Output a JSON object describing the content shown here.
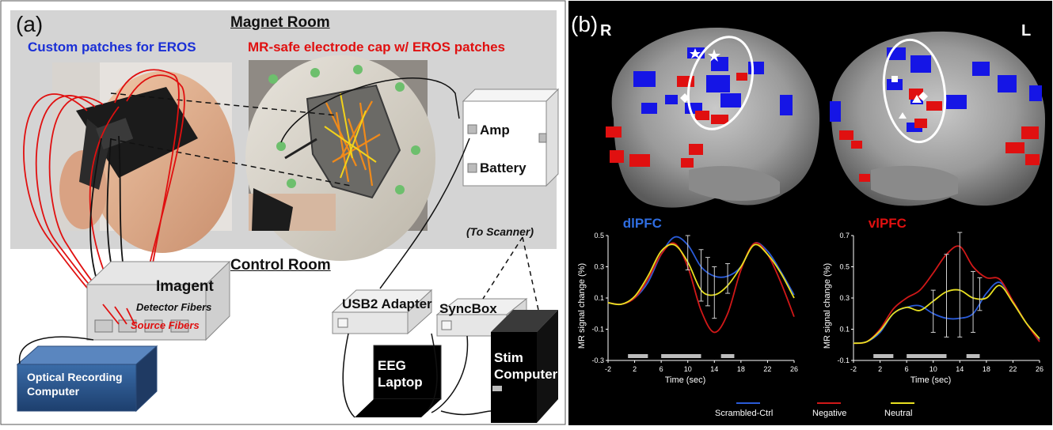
{
  "panel_a": {
    "label": "(a)",
    "magnet_room": "Magnet Room",
    "control_room": "Control Room",
    "custom_patches": "Custom patches for EROS",
    "mr_safe_cap": "MR-safe electrode cap w/ EROS patches",
    "amp": "Amp",
    "battery": "Battery",
    "to_scanner": "(To Scanner)",
    "imagent": "Imagent",
    "detector_fibers": "Detector Fibers",
    "source_fibers": "Source Fibers",
    "usb2_adapter": "USB2 Adapter",
    "syncbox": "SyncBox",
    "eeg_laptop_1": "EEG",
    "eeg_laptop_2": "Laptop",
    "stim_computer_1": "Stim",
    "stim_computer_2": "Computer",
    "optical_1": "Optical Recording",
    "optical_2": "Computer"
  },
  "panel_b": {
    "label": "(b)",
    "hemi_right": "R",
    "hemi_left": "L",
    "legend": [
      {
        "name": "Scrambled-Ctrl",
        "color": "#2a5bd8"
      },
      {
        "name": "Negative",
        "color": "#d01818"
      },
      {
        "name": "Neutral",
        "color": "#e8e020"
      }
    ]
  },
  "chart_data": [
    {
      "type": "line",
      "title": "dlPFC",
      "title_color": "#2f6de0",
      "xlabel": "Time (sec)",
      "ylabel": "MR signal change (%)",
      "xlim": [
        -2,
        26
      ],
      "ylim": [
        -0.3,
        0.5
      ],
      "xticks": [
        -2,
        2,
        6,
        10,
        14,
        18,
        22,
        26
      ],
      "yticks": [
        -0.3,
        -0.1,
        0.1,
        0.3,
        0.5
      ],
      "x": [
        -2,
        0,
        2,
        4,
        6,
        8,
        10,
        12,
        14,
        16,
        18,
        20,
        22,
        24,
        26
      ],
      "series": [
        {
          "name": "Scrambled-Ctrl",
          "color": "#2a5bd8",
          "values": [
            0.07,
            0.06,
            0.1,
            0.2,
            0.38,
            0.49,
            0.44,
            0.3,
            0.24,
            0.24,
            0.3,
            0.45,
            0.4,
            0.27,
            0.12
          ]
        },
        {
          "name": "Negative",
          "color": "#d01818",
          "values": [
            0.07,
            0.06,
            0.1,
            0.22,
            0.38,
            0.45,
            0.3,
            0.02,
            -0.12,
            0.0,
            0.28,
            0.45,
            0.38,
            0.2,
            -0.02
          ]
        },
        {
          "name": "Neutral",
          "color": "#e8e020",
          "values": [
            0.07,
            0.06,
            0.11,
            0.24,
            0.4,
            0.44,
            0.33,
            0.15,
            0.12,
            0.18,
            0.3,
            0.44,
            0.38,
            0.26,
            0.1
          ]
        }
      ],
      "error_bars": [
        {
          "x": 10,
          "low": 0.28,
          "high": 0.5
        },
        {
          "x": 12,
          "low": 0.08,
          "high": 0.41
        },
        {
          "x": 13,
          "low": 0.05,
          "high": 0.36
        },
        {
          "x": 14,
          "low": -0.03,
          "high": 0.3
        },
        {
          "x": 16,
          "low": 0.13,
          "high": 0.32
        }
      ],
      "stimulus_blocks": [
        [
          1,
          4
        ],
        [
          6,
          12
        ],
        [
          15,
          17
        ]
      ]
    },
    {
      "type": "line",
      "title": "vlPFC",
      "title_color": "#e01010",
      "xlabel": "Time (sec)",
      "ylabel": "MR signal change (%)",
      "xlim": [
        -2,
        26
      ],
      "ylim": [
        -0.1,
        0.7
      ],
      "xticks": [
        -2,
        2,
        6,
        10,
        14,
        18,
        22,
        26
      ],
      "yticks": [
        -0.1,
        0.1,
        0.3,
        0.5,
        0.7
      ],
      "x": [
        -2,
        0,
        2,
        4,
        6,
        8,
        10,
        12,
        14,
        16,
        18,
        20,
        22,
        24,
        26
      ],
      "series": [
        {
          "name": "Scrambled-Ctrl",
          "color": "#2a5bd8",
          "values": [
            0.01,
            0.02,
            0.08,
            0.2,
            0.24,
            0.25,
            0.2,
            0.17,
            0.17,
            0.2,
            0.33,
            0.4,
            0.28,
            0.14,
            0.03
          ]
        },
        {
          "name": "Negative",
          "color": "#d01818",
          "values": [
            0.01,
            0.02,
            0.1,
            0.23,
            0.3,
            0.35,
            0.46,
            0.58,
            0.63,
            0.5,
            0.43,
            0.42,
            0.28,
            0.14,
            0.02
          ]
        },
        {
          "name": "Neutral",
          "color": "#e8e020",
          "values": [
            0.01,
            0.02,
            0.09,
            0.2,
            0.24,
            0.22,
            0.28,
            0.34,
            0.35,
            0.3,
            0.3,
            0.38,
            0.27,
            0.14,
            0.04
          ]
        }
      ],
      "error_bars": [
        {
          "x": 10,
          "low": 0.08,
          "high": 0.35
        },
        {
          "x": 12,
          "low": 0.05,
          "high": 0.58
        },
        {
          "x": 14,
          "low": 0.05,
          "high": 0.72
        },
        {
          "x": 16,
          "low": 0.08,
          "high": 0.47
        },
        {
          "x": 17,
          "low": 0.22,
          "high": 0.43
        }
      ],
      "stimulus_blocks": [
        [
          1,
          4
        ],
        [
          6,
          12
        ],
        [
          15,
          17
        ]
      ]
    }
  ]
}
